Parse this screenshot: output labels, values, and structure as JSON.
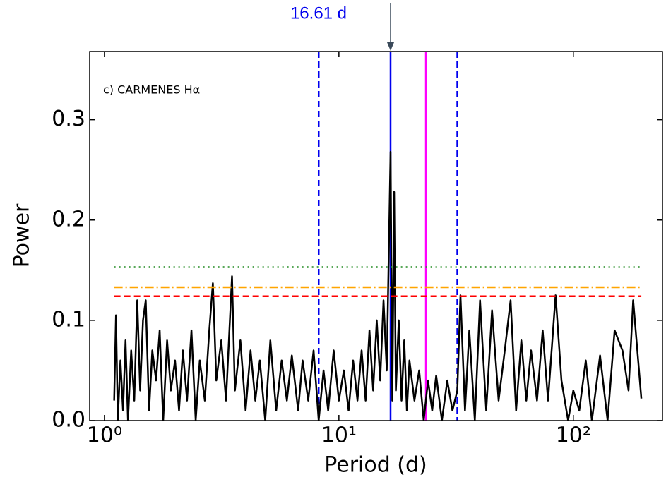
{
  "chart_data": {
    "type": "line",
    "xlabel": "Period (d)",
    "ylabel": "Power",
    "annotation": "c) CARMENES Hα",
    "arrow_label": {
      "text": "16.61 d",
      "x": 16.61,
      "color": "#0000ee"
    },
    "xscale": "log",
    "xlim": [
      0.865,
      240
    ],
    "ylim": [
      0,
      0.368
    ],
    "xticks": [
      {
        "value": 1,
        "label": "10⁰"
      },
      {
        "value": 10,
        "label": "10¹"
      },
      {
        "value": 100,
        "label": "10²"
      }
    ],
    "yticks": [
      {
        "value": 0,
        "label": "0.0"
      },
      0.1,
      0.2,
      0.3
    ],
    "color": "#000000",
    "x": [
      1.1,
      1.12,
      1.14,
      1.17,
      1.2,
      1.23,
      1.26,
      1.3,
      1.34,
      1.38,
      1.42,
      1.46,
      1.5,
      1.55,
      1.6,
      1.66,
      1.72,
      1.78,
      1.85,
      1.92,
      2.0,
      2.08,
      2.16,
      2.25,
      2.35,
      2.45,
      2.55,
      2.68,
      2.8,
      2.9,
      3.0,
      3.15,
      3.3,
      3.5,
      3.6,
      3.8,
      4.0,
      4.2,
      4.4,
      4.6,
      4.85,
      5.1,
      5.4,
      5.7,
      6.0,
      6.3,
      6.7,
      7.0,
      7.4,
      7.8,
      8.2,
      8.6,
      9.0,
      9.5,
      10.0,
      10.5,
      11.0,
      11.5,
      12.0,
      12.5,
      13.0,
      13.5,
      14.0,
      14.5,
      15.0,
      15.5,
      16.0,
      16.3,
      16.61,
      16.9,
      17.2,
      17.5,
      18.0,
      18.5,
      19.0,
      19.5,
      20.0,
      21.0,
      22.0,
      23.0,
      24.0,
      25.0,
      26.0,
      27.5,
      29.0,
      30.5,
      32.0,
      33.0,
      34.5,
      36.0,
      38.0,
      40.0,
      42.5,
      45.0,
      48.0,
      51.0,
      54.0,
      57.0,
      60.0,
      63.0,
      66.0,
      70.0,
      74.0,
      78.0,
      84.0,
      89.0,
      95.0,
      100.0,
      106.0,
      113.0,
      120.0,
      130.0,
      140.0,
      150.0,
      162.0,
      172.0,
      180.0,
      195.0
    ],
    "values": [
      0.02,
      0.105,
      0.0,
      0.06,
      0.01,
      0.08,
      0.0,
      0.07,
      0.02,
      0.12,
      0.03,
      0.1,
      0.12,
      0.01,
      0.07,
      0.04,
      0.09,
      0.0,
      0.08,
      0.03,
      0.06,
      0.01,
      0.07,
      0.02,
      0.09,
      0.0,
      0.06,
      0.02,
      0.09,
      0.137,
      0.04,
      0.08,
      0.02,
      0.144,
      0.03,
      0.08,
      0.01,
      0.07,
      0.02,
      0.06,
      0.0,
      0.08,
      0.01,
      0.06,
      0.02,
      0.065,
      0.01,
      0.06,
      0.02,
      0.07,
      0.0,
      0.05,
      0.01,
      0.07,
      0.02,
      0.05,
      0.01,
      0.06,
      0.02,
      0.07,
      0.02,
      0.09,
      0.03,
      0.1,
      0.04,
      0.12,
      0.05,
      0.16,
      0.268,
      0.02,
      0.228,
      0.03,
      0.1,
      0.02,
      0.08,
      0.01,
      0.06,
      0.02,
      0.05,
      0.0,
      0.04,
      0.01,
      0.045,
      0.0,
      0.04,
      0.01,
      0.03,
      0.125,
      0.01,
      0.09,
      0.0,
      0.12,
      0.01,
      0.11,
      0.02,
      0.07,
      0.12,
      0.01,
      0.08,
      0.02,
      0.07,
      0.02,
      0.09,
      0.02,
      0.125,
      0.04,
      0.0,
      0.03,
      0.01,
      0.06,
      0.0,
      0.065,
      0.0,
      0.09,
      0.07,
      0.03,
      0.12,
      0.022
    ],
    "hlines": [
      {
        "value": 0.153,
        "color": "#228b22",
        "style": "dotted"
      },
      {
        "value": 0.133,
        "color": "#ffa500",
        "style": "dashdot"
      },
      {
        "value": 0.124,
        "color": "#ff0000",
        "style": "dashed"
      }
    ],
    "vlines": [
      {
        "value": 8.2,
        "color": "#0000ee",
        "style": "dashed"
      },
      {
        "value": 16.61,
        "color": "#0000ee",
        "style": "solid"
      },
      {
        "value": 23.5,
        "color": "#ff00ff",
        "style": "solid"
      },
      {
        "value": 32,
        "color": "#0000ee",
        "style": "dashed"
      }
    ]
  }
}
